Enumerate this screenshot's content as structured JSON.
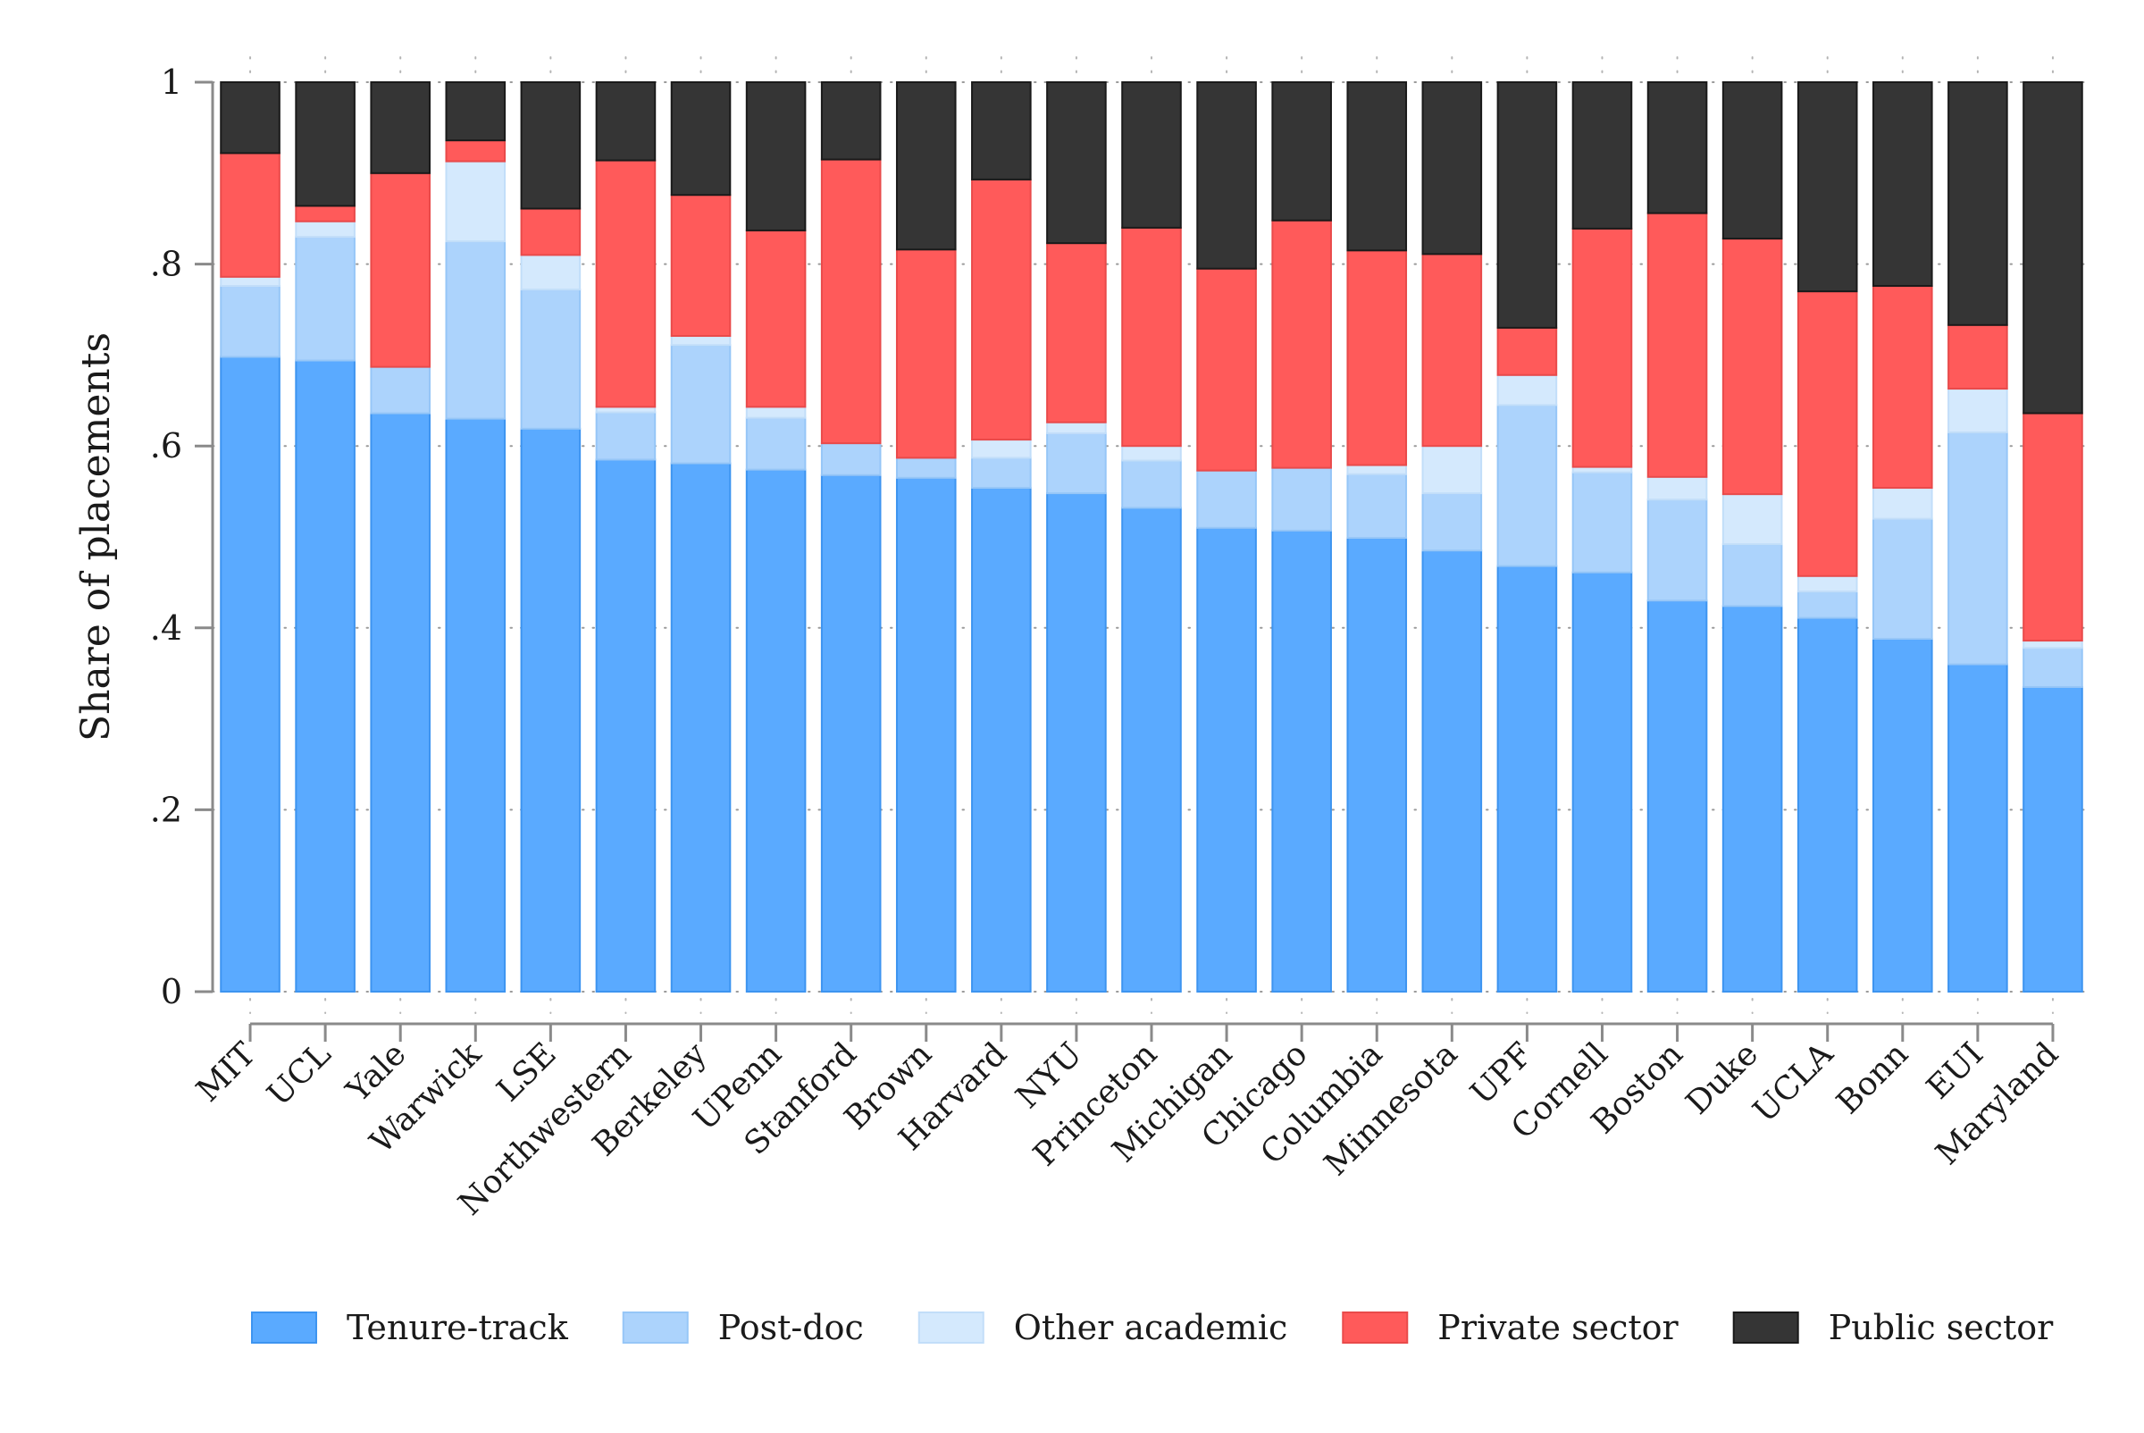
{
  "chart_data": {
    "type": "bar",
    "stacked": true,
    "title": "",
    "xlabel": "",
    "ylabel": "Share of placements",
    "ylim": [
      0,
      1
    ],
    "yticks": [
      0,
      0.2,
      0.4,
      0.6,
      0.8,
      1
    ],
    "ytick_labels": [
      "0",
      ".2",
      ".4",
      ".6",
      ".8",
      "1"
    ],
    "grid": "horizontal dotted",
    "legend_position": "bottom",
    "categories": [
      "MIT",
      "UCL",
      "Yale",
      "Warwick",
      "LSE",
      "Northwestern",
      "Berkeley",
      "UPenn",
      "Stanford",
      "Brown",
      "Harvard",
      "NYU",
      "Princeton",
      "Michigan",
      "Chicago",
      "Columbia",
      "Minnesota",
      "UPF",
      "Cornell",
      "Boston",
      "Duke",
      "UCLA",
      "Bonn",
      "EUI",
      "Maryland"
    ],
    "series": [
      {
        "name": "Tenure-track",
        "color": "#5aaaff",
        "edge": "#3d94f0",
        "values": [
          0.698,
          0.694,
          0.636,
          0.63,
          0.619,
          0.585,
          0.581,
          0.574,
          0.568,
          0.565,
          0.554,
          0.548,
          0.532,
          0.51,
          0.507,
          0.499,
          0.485,
          0.468,
          0.461,
          0.43,
          0.424,
          0.411,
          0.388,
          0.36,
          0.335
        ]
      },
      {
        "name": "Post-doc",
        "color": "#acd3fc",
        "edge": "#96c6f7",
        "values": [
          0.078,
          0.136,
          0.051,
          0.195,
          0.153,
          0.052,
          0.13,
          0.057,
          0.035,
          0.022,
          0.033,
          0.066,
          0.052,
          0.063,
          0.069,
          0.07,
          0.063,
          0.177,
          0.11,
          0.111,
          0.068,
          0.029,
          0.132,
          0.255,
          0.043
        ]
      },
      {
        "name": "Other academic",
        "color": "#d4e9fd",
        "edge": "#c2def9",
        "values": [
          0.01,
          0.017,
          0.0,
          0.088,
          0.038,
          0.006,
          0.01,
          0.012,
          0.0,
          0.0,
          0.02,
          0.012,
          0.016,
          0.0,
          0.0,
          0.01,
          0.052,
          0.033,
          0.006,
          0.025,
          0.055,
          0.017,
          0.034,
          0.048,
          0.008
        ]
      },
      {
        "name": "Private sector",
        "color": "#ff5a5a",
        "edge": "#e94a4a",
        "values": [
          0.136,
          0.017,
          0.213,
          0.023,
          0.051,
          0.271,
          0.155,
          0.194,
          0.312,
          0.229,
          0.286,
          0.197,
          0.24,
          0.222,
          0.272,
          0.236,
          0.211,
          0.052,
          0.262,
          0.29,
          0.281,
          0.313,
          0.222,
          0.07,
          0.25
        ]
      },
      {
        "name": "Public sector",
        "color": "#353535",
        "edge": "#1a1a1a",
        "values": [
          0.078,
          0.136,
          0.1,
          0.064,
          0.139,
          0.086,
          0.124,
          0.163,
          0.085,
          0.184,
          0.107,
          0.177,
          0.16,
          0.205,
          0.152,
          0.185,
          0.189,
          0.27,
          0.161,
          0.144,
          0.172,
          0.23,
          0.224,
          0.267,
          0.364
        ]
      }
    ]
  }
}
